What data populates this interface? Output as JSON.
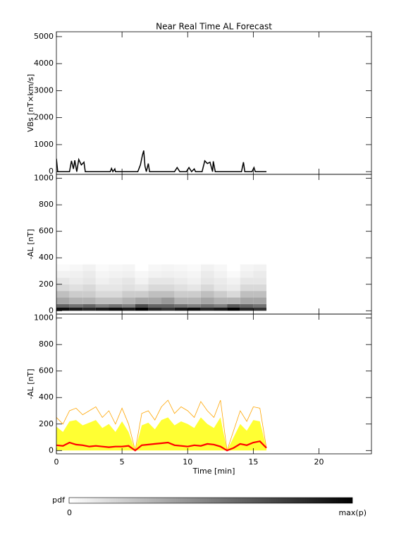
{
  "chart_data": [
    {
      "type": "line",
      "title": "Near Real Time AL Forecast",
      "ylabel": "VBs [nT×km/s]",
      "xlim": [
        0,
        24
      ],
      "xticks": [
        0,
        5,
        10,
        15,
        20
      ],
      "xtick_labels": false,
      "ylim": [
        -100,
        5180
      ],
      "yticks": [
        0,
        1000,
        2000,
        3000,
        4000,
        5000
      ],
      "color": "#000000",
      "x": [
        0,
        0.1,
        1.0,
        1.15,
        1.3,
        1.4,
        1.55,
        1.7,
        1.9,
        2.1,
        2.2,
        4.1,
        4.2,
        4.3,
        4.45,
        4.5,
        6.2,
        6.4,
        6.55,
        6.65,
        6.75,
        6.85,
        7.0,
        7.1,
        9.0,
        9.2,
        9.4,
        9.9,
        10.1,
        10.3,
        10.5,
        10.6,
        11.1,
        11.3,
        11.5,
        11.7,
        11.9,
        11.95,
        12.1,
        14.1,
        14.25,
        14.35,
        14.9,
        15.05,
        15.15,
        16
      ],
      "values": [
        480,
        0,
        0,
        400,
        100,
        420,
        0,
        450,
        250,
        350,
        0,
        0,
        120,
        0,
        100,
        0,
        0,
        250,
        600,
        780,
        200,
        0,
        300,
        0,
        0,
        150,
        0,
        0,
        150,
        0,
        100,
        0,
        0,
        400,
        300,
        350,
        0,
        380,
        0,
        0,
        350,
        0,
        0,
        150,
        0,
        0
      ]
    },
    {
      "type": "heatmap",
      "ylabel": "-AL [nT]",
      "xlim": [
        0,
        24
      ],
      "xticks": [
        0,
        5,
        10,
        15,
        20
      ],
      "xtick_labels": false,
      "ylim": [
        -25,
        1030
      ],
      "yticks": [
        0,
        200,
        400,
        600,
        800,
        1000
      ],
      "x_edges": [
        0,
        1,
        2,
        3,
        4,
        5,
        6,
        7,
        8,
        9,
        10,
        11,
        12,
        13,
        14,
        15,
        16
      ],
      "y_edges": [
        0,
        25,
        50,
        100,
        150,
        200,
        250,
        300,
        350
      ],
      "z": [
        [
          0.95,
          0.6,
          0.35,
          0.25,
          0.15,
          0.1,
          0.05,
          0.02
        ],
        [
          0.9,
          0.55,
          0.3,
          0.2,
          0.12,
          0.08,
          0.06,
          0.03
        ],
        [
          0.85,
          0.6,
          0.3,
          0.2,
          0.15,
          0.1,
          0.08,
          0.05
        ],
        [
          0.9,
          0.5,
          0.25,
          0.15,
          0.1,
          0.06,
          0.04,
          0.02
        ],
        [
          0.95,
          0.55,
          0.25,
          0.15,
          0.1,
          0.08,
          0.05,
          0.03
        ],
        [
          0.9,
          0.5,
          0.3,
          0.2,
          0.12,
          0.1,
          0.06,
          0.04
        ],
        [
          1.0,
          0.7,
          0.35,
          0.2,
          0.1,
          0.05,
          0.03,
          0
        ],
        [
          0.85,
          0.6,
          0.35,
          0.25,
          0.15,
          0.1,
          0.05,
          0.03
        ],
        [
          0.8,
          0.6,
          0.4,
          0.25,
          0.15,
          0.1,
          0.06,
          0.04
        ],
        [
          0.9,
          0.55,
          0.3,
          0.2,
          0.12,
          0.08,
          0.05,
          0.03
        ],
        [
          0.95,
          0.5,
          0.3,
          0.2,
          0.1,
          0.06,
          0.04,
          0.02
        ],
        [
          0.85,
          0.55,
          0.35,
          0.25,
          0.15,
          0.1,
          0.08,
          0.05
        ],
        [
          0.9,
          0.5,
          0.3,
          0.2,
          0.1,
          0.08,
          0.05,
          0.03
        ],
        [
          1.0,
          0.65,
          0.3,
          0.15,
          0.08,
          0.05,
          0.02,
          0
        ],
        [
          0.85,
          0.6,
          0.35,
          0.25,
          0.15,
          0.1,
          0.06,
          0.04
        ],
        [
          0.8,
          0.55,
          0.35,
          0.25,
          0.15,
          0.1,
          0.08,
          0.05
        ]
      ],
      "cmap": [
        "#ffffff",
        "#000000"
      ],
      "colorbar": {
        "label": "pdf",
        "min_label": "0",
        "max_label": "max(p)"
      }
    },
    {
      "type": "line",
      "ylabel": "-AL [nT]",
      "xlabel": "Time [min]",
      "xlim": [
        0,
        24
      ],
      "xticks": [
        0,
        5,
        10,
        15,
        20
      ],
      "xtick_labels": true,
      "ylim": [
        -25,
        1030
      ],
      "yticks": [
        0,
        200,
        400,
        600,
        800,
        1000
      ],
      "x": [
        0,
        0.5,
        1,
        1.5,
        2,
        2.5,
        3,
        3.5,
        4,
        4.5,
        5,
        5.5,
        6,
        6.5,
        7,
        7.5,
        8,
        8.5,
        9,
        9.5,
        10,
        10.5,
        11,
        11.5,
        12,
        12.5,
        13,
        13.5,
        14,
        14.5,
        15,
        15.5,
        16
      ],
      "series": [
        {
          "color": "#ffff33",
          "fill": true,
          "values": [
            180,
            140,
            220,
            230,
            190,
            210,
            230,
            170,
            200,
            140,
            220,
            140,
            0,
            190,
            210,
            160,
            230,
            250,
            190,
            220,
            200,
            170,
            250,
            200,
            170,
            250,
            0,
            100,
            200,
            150,
            230,
            220,
            20
          ]
        },
        {
          "color": "#ffa500",
          "values": [
            250,
            200,
            300,
            320,
            270,
            300,
            330,
            250,
            300,
            200,
            320,
            200,
            0,
            280,
            300,
            230,
            330,
            380,
            280,
            330,
            300,
            250,
            370,
            300,
            250,
            380,
            0,
            150,
            300,
            220,
            330,
            320,
            20
          ]
        },
        {
          "color": "#ff0000",
          "values": [
            40,
            35,
            60,
            45,
            40,
            30,
            35,
            30,
            25,
            30,
            30,
            35,
            0,
            40,
            45,
            50,
            55,
            60,
            40,
            35,
            30,
            40,
            35,
            50,
            45,
            30,
            0,
            20,
            50,
            40,
            60,
            70,
            20
          ]
        }
      ]
    }
  ]
}
